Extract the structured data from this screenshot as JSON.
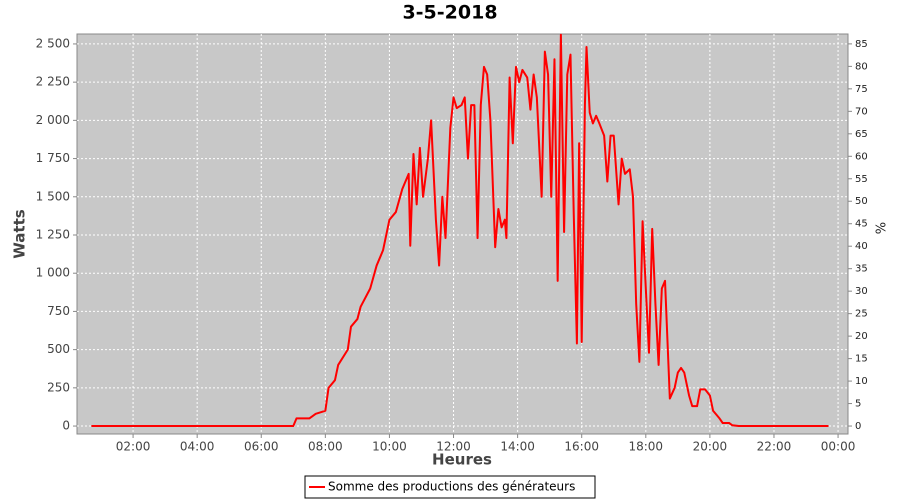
{
  "chart_data": {
    "type": "line",
    "title": "3-5-2018",
    "x_label": "Heures",
    "y_label": "Watts",
    "y2_label": "%",
    "x": [
      0.7,
      7.0,
      7.1,
      7.5,
      7.7,
      8.0,
      8.1,
      8.3,
      8.4,
      8.7,
      8.8,
      9.0,
      9.1,
      9.4,
      9.6,
      9.8,
      10.0,
      10.2,
      10.4,
      10.6,
      10.65,
      10.75,
      10.85,
      10.95,
      11.05,
      11.2,
      11.3,
      11.45,
      11.55,
      11.65,
      11.75,
      11.9,
      12.0,
      12.1,
      12.25,
      12.35,
      12.45,
      12.55,
      12.65,
      12.75,
      12.85,
      12.95,
      13.05,
      13.15,
      13.3,
      13.4,
      13.5,
      13.6,
      13.65,
      13.75,
      13.85,
      13.95,
      14.05,
      14.15,
      14.3,
      14.4,
      14.5,
      14.6,
      14.75,
      14.85,
      14.95,
      15.05,
      15.15,
      15.25,
      15.35,
      15.45,
      15.55,
      15.65,
      15.75,
      15.85,
      15.92,
      16.0,
      16.1,
      16.15,
      16.25,
      16.35,
      16.45,
      16.55,
      16.7,
      16.8,
      16.9,
      17.0,
      17.15,
      17.25,
      17.35,
      17.5,
      17.6,
      17.7,
      17.8,
      17.9,
      18.0,
      18.1,
      18.2,
      18.3,
      18.4,
      18.5,
      18.6,
      18.75,
      18.9,
      19.0,
      19.1,
      19.2,
      19.35,
      19.45,
      19.6,
      19.7,
      19.85,
      20.0,
      20.1,
      20.3,
      20.4,
      20.6,
      20.7,
      20.9,
      23.7
    ],
    "series": [
      {
        "name": "Somme des productions des  générateurs",
        "color": "#ff0000",
        "values": [
          0,
          0,
          50,
          50,
          80,
          100,
          250,
          300,
          400,
          500,
          650,
          700,
          780,
          900,
          1050,
          1150,
          1350,
          1400,
          1550,
          1650,
          1180,
          1780,
          1450,
          1820,
          1500,
          1750,
          2000,
          1350,
          1050,
          1500,
          1230,
          1950,
          2150,
          2080,
          2100,
          2150,
          1750,
          2100,
          2100,
          1230,
          2100,
          2350,
          2300,
          2000,
          1170,
          1420,
          1300,
          1350,
          1230,
          2280,
          1850,
          2350,
          2250,
          2330,
          2280,
          2070,
          2300,
          2150,
          1500,
          2450,
          2300,
          1500,
          2400,
          950,
          2560,
          1270,
          2300,
          2430,
          1400,
          540,
          1850,
          550,
          2100,
          2480,
          2050,
          1980,
          2030,
          1980,
          1900,
          1600,
          1900,
          1900,
          1450,
          1750,
          1650,
          1680,
          1500,
          800,
          420,
          1340,
          900,
          480,
          1290,
          800,
          400,
          900,
          950,
          180,
          250,
          350,
          380,
          350,
          200,
          130,
          130,
          240,
          240,
          200,
          100,
          50,
          20,
          20,
          5,
          0,
          0
        ]
      }
    ],
    "xlim": [
      0.25,
      24.31
    ],
    "xticks": [
      {
        "value": 2,
        "label": "02:00"
      },
      {
        "value": 4,
        "label": "04:00"
      },
      {
        "value": 6,
        "label": "06:00"
      },
      {
        "value": 8,
        "label": "08:00"
      },
      {
        "value": 10,
        "label": "10:00"
      },
      {
        "value": 12,
        "label": "12:00"
      },
      {
        "value": 14,
        "label": "14:00"
      },
      {
        "value": 16,
        "label": "16:00"
      },
      {
        "value": 18,
        "label": "18:00"
      },
      {
        "value": 20,
        "label": "20:00"
      },
      {
        "value": 22,
        "label": "22:00"
      },
      {
        "value": 24,
        "label": "00:00"
      }
    ],
    "ylim": [
      -52,
      2565
    ],
    "yticks": [
      0,
      250,
      500,
      750,
      {
        "value": 1000,
        "label": "1 000"
      },
      {
        "value": 1250,
        "label": "1 250"
      },
      {
        "value": 1500,
        "label": "1 500"
      },
      {
        "value": 1750,
        "label": "1 750"
      },
      {
        "value": 2000,
        "label": "2 000"
      },
      {
        "value": 2250,
        "label": "2 250"
      },
      {
        "value": 2500,
        "label": "2 500"
      }
    ],
    "y2lim": [
      -1.77,
      87.2
    ],
    "y2ticks": [
      0,
      5,
      10,
      15,
      20,
      25,
      30,
      35,
      40,
      45,
      50,
      55,
      60,
      65,
      70,
      75,
      80,
      85
    ],
    "grid": true
  }
}
